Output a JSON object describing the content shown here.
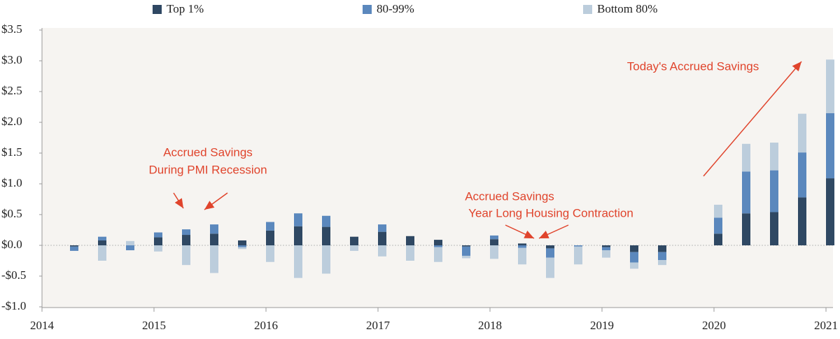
{
  "chart_data": {
    "type": "stacked_bar",
    "x": [
      2014.25,
      2014.5,
      2014.75,
      2015.0,
      2015.25,
      2015.5,
      2015.75,
      2016.0,
      2016.25,
      2016.5,
      2016.75,
      2017.0,
      2017.25,
      2017.5,
      2017.75,
      2018.0,
      2018.25,
      2018.5,
      2018.75,
      2019.0,
      2019.25,
      2019.5,
      2020.0,
      2020.25,
      2020.5,
      2020.75,
      2021.0
    ],
    "series": [
      {
        "name": "Top 1%",
        "color": "#2f4863",
        "values": [
          -0.02,
          0.08,
          0,
          0.13,
          0.17,
          0.19,
          0.08,
          0.24,
          0.31,
          0.3,
          0.14,
          0.22,
          0.15,
          0.09,
          -0.02,
          0.1,
          0.03,
          -0.05,
          0,
          -0.03,
          -0.11,
          -0.11,
          0.19,
          0.52,
          0.54,
          0.78,
          1.09
        ]
      },
      {
        "name": "80-99%",
        "color": "#5b88bd",
        "values": [
          -0.07,
          0.06,
          -0.08,
          0.08,
          0.09,
          0.15,
          -0.03,
          0.14,
          0.21,
          0.18,
          0,
          0.12,
          0,
          -0.03,
          -0.15,
          0.06,
          -0.04,
          -0.15,
          -0.02,
          -0.05,
          -0.17,
          -0.13,
          0.26,
          0.68,
          0.68,
          0.73,
          1.06
        ]
      },
      {
        "name": "Bottom 80%",
        "color": "#bccddc",
        "values": [
          0,
          -0.25,
          0.07,
          -0.1,
          -0.32,
          -0.45,
          -0.03,
          -0.27,
          -0.53,
          -0.46,
          -0.09,
          -0.18,
          -0.25,
          -0.24,
          -0.04,
          -0.22,
          -0.27,
          -0.33,
          -0.29,
          -0.12,
          -0.1,
          -0.08,
          0.21,
          0.45,
          0.45,
          0.63,
          0.87
        ]
      }
    ],
    "xlim": [
      2014,
      2021
    ],
    "xticks": [
      2014,
      2015,
      2016,
      2017,
      2018,
      2019,
      2020,
      2021
    ],
    "ylim": [
      -1.0,
      3.5
    ],
    "yticks": [
      {
        "value": -1.0,
        "label": "-$1.0"
      },
      {
        "value": -0.5,
        "label": "-$0.5"
      },
      {
        "value": 0,
        "label": "$0.0"
      },
      {
        "value": 0.5,
        "label": "$0.5"
      },
      {
        "value": 1.0,
        "label": "$1.0"
      },
      {
        "value": 1.5,
        "label": "$1.5"
      },
      {
        "value": 2.0,
        "label": "$2.0"
      },
      {
        "value": 2.5,
        "label": "$2.5"
      },
      {
        "value": 3.0,
        "label": "$3.0"
      },
      {
        "value": 3.5,
        "label": "$3.5"
      }
    ],
    "annotations": [
      "Accrued Savings",
      "During PMI Recession",
      "Accrued Savings",
      "Year Long Housing Contraction",
      "Today's Accrued Savings"
    ]
  }
}
